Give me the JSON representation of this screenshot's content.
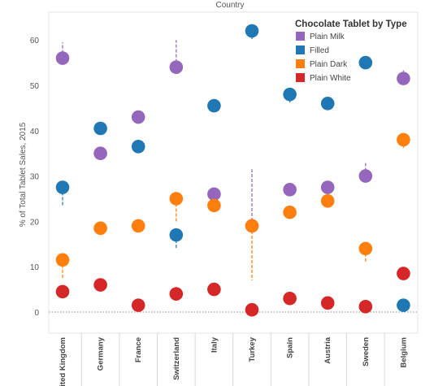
{
  "chart_data": {
    "type": "scatter",
    "title": "Country",
    "ylabel": "% of Total Tablet Sales, 2015",
    "xlabel": "",
    "ylim": [
      -4,
      65
    ],
    "yticks": [
      0,
      10,
      20,
      30,
      40,
      50,
      60
    ],
    "grid": false,
    "legend": {
      "title": "Chocolate Tablet by Type",
      "position": "top-right"
    },
    "categories": [
      "United Kingdom",
      "Germany",
      "France",
      "Switzerland",
      "Italy",
      "Turkey",
      "Spain",
      "Austria",
      "Sweden",
      "Belgium"
    ],
    "series": [
      {
        "name": "Plain Milk",
        "color": "#9467bd",
        "values": [
          56,
          35,
          43,
          54,
          26,
          19,
          27,
          27.5,
          30,
          51.5
        ],
        "range_end": [
          59.5,
          null,
          null,
          60,
          null,
          31.5,
          28.5,
          null,
          33,
          53.5
        ]
      },
      {
        "name": "Filled",
        "color": "#1f77b4",
        "values": [
          27.5,
          40.5,
          36.5,
          17,
          45.5,
          62,
          48,
          46,
          55,
          1.5
        ],
        "range_end": [
          23.5,
          null,
          null,
          14,
          null,
          60,
          46,
          47.5,
          null,
          null
        ]
      },
      {
        "name": "Plain Dark",
        "color": "#ff7f0e",
        "values": [
          11.5,
          18.5,
          19,
          25,
          23.5,
          19,
          22,
          24.5,
          14,
          38
        ],
        "range_end": [
          7.5,
          null,
          null,
          20,
          null,
          7,
          null,
          null,
          11,
          36
        ]
      },
      {
        "name": "Plain White",
        "color": "#d62728",
        "values": [
          4.5,
          6,
          1.5,
          4,
          5,
          0.5,
          3,
          2,
          1.2,
          8.5
        ],
        "range_end": [
          null,
          null,
          null,
          5.5,
          null,
          null,
          null,
          null,
          null,
          null
        ]
      }
    ]
  }
}
